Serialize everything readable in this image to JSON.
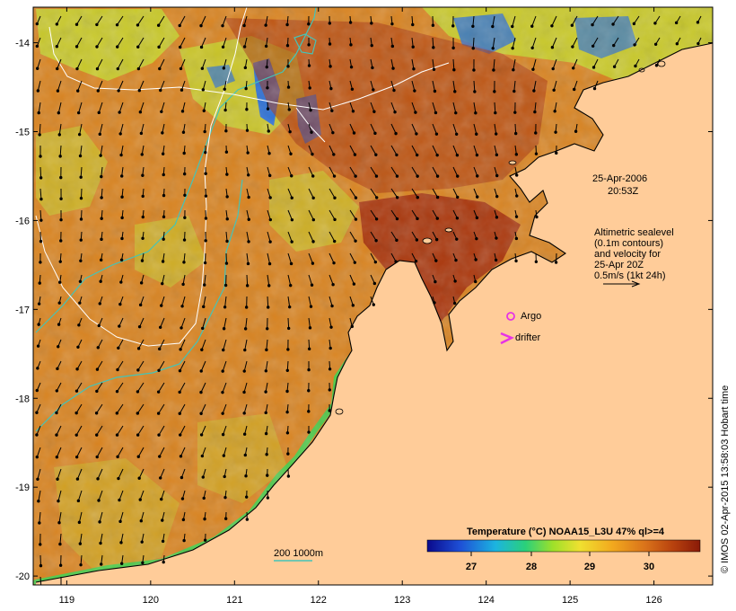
{
  "map": {
    "lon_range": [
      118.6,
      126.7
    ],
    "lat_range": [
      -20.1,
      -13.6
    ],
    "x_ticks": [
      "119",
      "120",
      "121",
      "122",
      "123",
      "124",
      "125",
      "126"
    ],
    "y_ticks": [
      "-14",
      "-15",
      "-16",
      "-17",
      "-18",
      "-19",
      "-20"
    ],
    "colors": {
      "land": "#ffcc99",
      "sea_warm": "#d9831f",
      "sea_hot": "#a8320b",
      "sea_cool": "#c6d62a",
      "sea_cold": "#2a6fd6",
      "isobath": "#44c4b8",
      "sealevel_contour": "#ffffff",
      "argo": "#e632e6",
      "drifter": "#e632e6"
    }
  },
  "annotations": {
    "date": "25-Apr-2006",
    "time": "20:53Z",
    "sealevel_lines": [
      "Altimetric sealevel",
      "(0.1m contours)",
      "and velocity for",
      "25-Apr 20Z",
      "0.5m/s (1kt 24h)"
    ],
    "argo_label": "Argo",
    "drifter_label": "drifter",
    "isobath_label": "200  1000m"
  },
  "colorbar": {
    "title": "Temperature (°C) NOAA15_L3U 47% ql>=4",
    "ticks": [
      "27",
      "28",
      "29",
      "30"
    ]
  },
  "credit": "© IMOS 02-Apr-2015 13:58:03 Hobart time"
}
